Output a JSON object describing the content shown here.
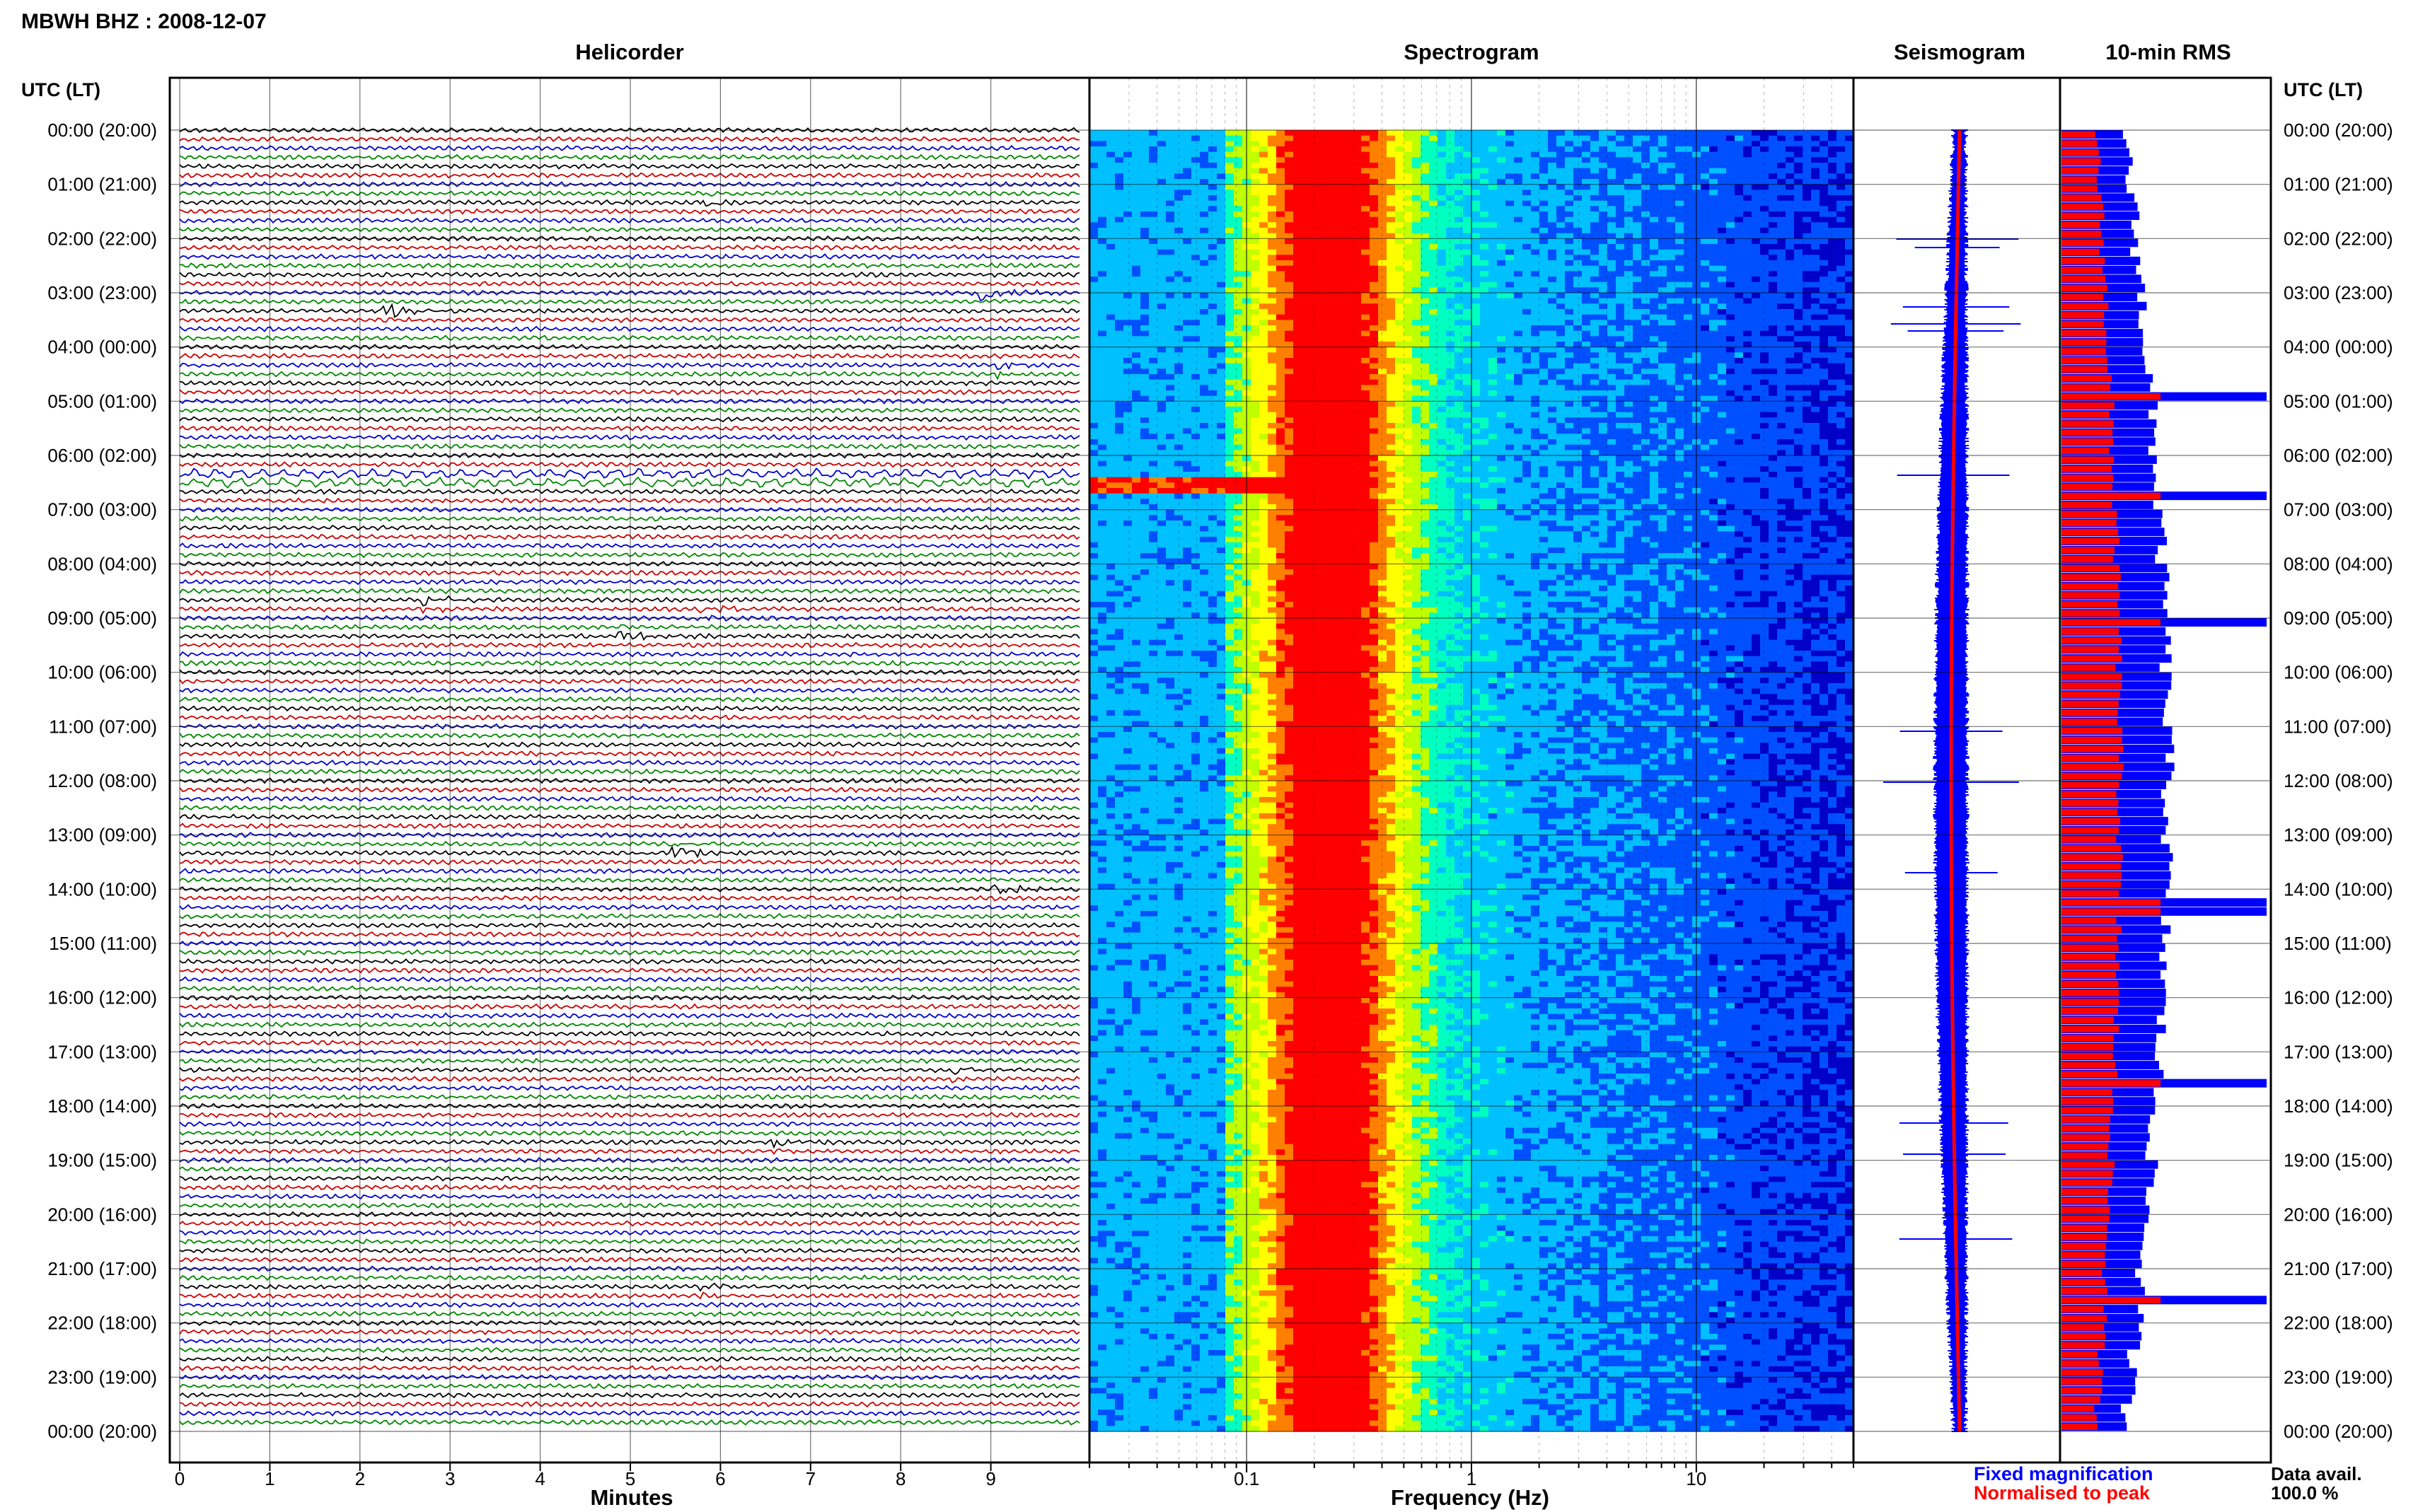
{
  "header": {
    "station_title": "MBWH BHZ : 2008-12-07",
    "utc_label": "UTC (LT)"
  },
  "panels": {
    "helicorder": "Helicorder",
    "spectrogram": "Spectrogram",
    "seismogram": "Seismogram",
    "rms": "10-min RMS"
  },
  "axes": {
    "minutes_label": "Minutes",
    "frequency_label": "Frequency (Hz)",
    "minute_ticks": [
      "0",
      "1",
      "2",
      "3",
      "4",
      "5",
      "6",
      "7",
      "8",
      "9"
    ],
    "freq_ticks": [
      "0.1",
      "1",
      "10"
    ]
  },
  "legend": {
    "fixed": "Fixed magnification",
    "normalised": "Normalised to peak",
    "fixed_color": "#0000ff",
    "normalised_color": "#ff0000"
  },
  "availability": {
    "label": "Data avail.",
    "value": "100.0 %"
  },
  "time_labels": [
    "00:00 (20:00)",
    "01:00 (21:00)",
    "02:00 (22:00)",
    "03:00 (23:00)",
    "04:00 (00:00)",
    "05:00 (01:00)",
    "06:00 (02:00)",
    "07:00 (03:00)",
    "08:00 (04:00)",
    "09:00 (05:00)",
    "10:00 (06:00)",
    "11:00 (07:00)",
    "12:00 (08:00)",
    "13:00 (09:00)",
    "14:00 (10:00)",
    "15:00 (11:00)",
    "16:00 (12:00)",
    "17:00 (13:00)",
    "18:00 (14:00)",
    "19:00 (15:00)",
    "20:00 (16:00)",
    "21:00 (17:00)",
    "22:00 (18:00)",
    "23:00 (19:00)",
    "00:00 (20:00)"
  ],
  "chart_data": {
    "type": "heatmap",
    "helicorder": {
      "line_minutes": 10,
      "lines_per_hour": 6,
      "trace_colors": [
        "#000000",
        "#cc0000",
        "#0000cc",
        "#008800"
      ],
      "events_minute_hour": [
        [
          5.8,
          1.3
        ],
        [
          2.3,
          3.35
        ],
        [
          8.9,
          3.0
        ],
        [
          9.1,
          4.4
        ],
        [
          5.8,
          8.9
        ],
        [
          4.9,
          9.3
        ],
        [
          2.7,
          8.7
        ],
        [
          5.5,
          13.3
        ],
        [
          9.0,
          14.0
        ],
        [
          8.6,
          17.4
        ],
        [
          6.6,
          18.7
        ],
        [
          5.8,
          21.4
        ]
      ]
    },
    "spectrogram": {
      "freq_range_hz": [
        0.02,
        50
      ],
      "log_frequency": true,
      "colormap": [
        "#0000c8",
        "#0050ff",
        "#00c0ff",
        "#00ffc0",
        "#c0ff00",
        "#ffff00",
        "#ff8000",
        "#ff0000"
      ]
    },
    "seismogram": {
      "colors": {
        "fixed": "#0000ff",
        "normalised": "#ff0000"
      }
    },
    "rms": {
      "interval_min": 10,
      "peak_hours": [
        4.8,
        6.6,
        9.0,
        14.25,
        17.55,
        21.5
      ]
    }
  }
}
